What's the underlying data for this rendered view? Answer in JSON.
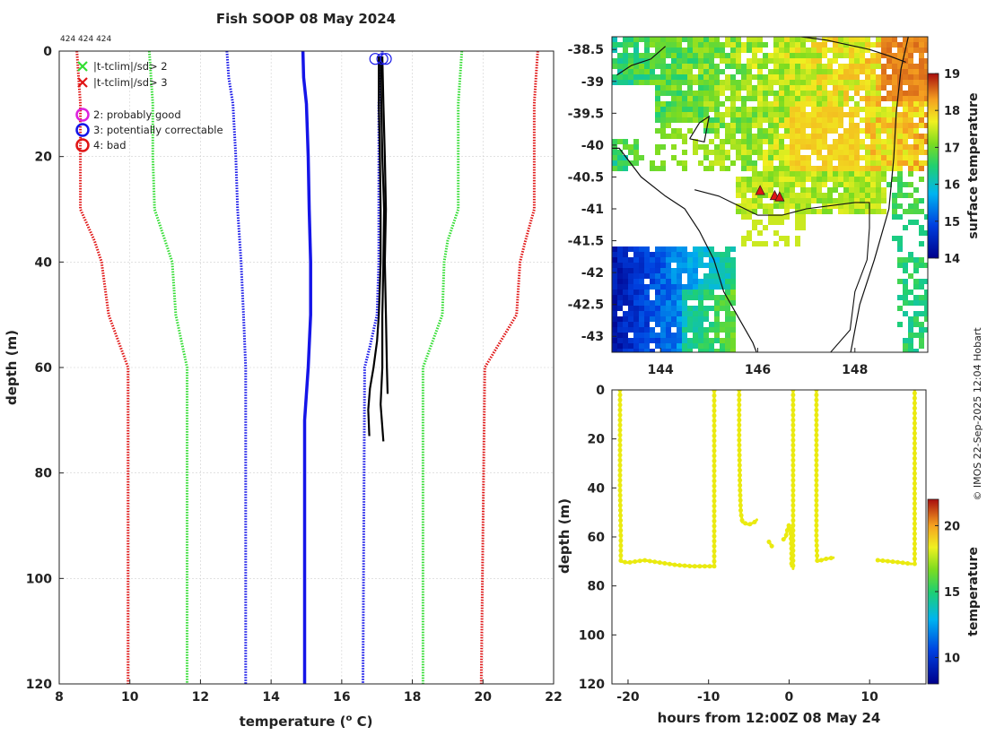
{
  "title": "Fish SOOP 08 May 2024",
  "profile_ids": "424 424 424",
  "credit": "© IMOS 22-Sep-2025 12:04 Hobart",
  "colors": {
    "clim_mean": "#1515e8",
    "sd1": "#1515e8",
    "sd2": "#33dd33",
    "sd3": "#e01515",
    "profile": "#000000",
    "qc_good": "#dd22dd",
    "qc_correctable": "#1515e8",
    "qc_bad": "#e01515",
    "track": "#eaea10",
    "coast": "#111111"
  },
  "legend": {
    "items": [
      {
        "symbol": "x",
        "color": "#33dd33",
        "label": "|t-tclim|/sd> 2"
      },
      {
        "symbol": "x",
        "color": "#e01515",
        "label": "|t-tclim|/sd> 3"
      },
      {
        "symbol": "o",
        "color": "#dd22dd",
        "label": "2: probably good"
      },
      {
        "symbol": "o",
        "color": "#1515e8",
        "label": "3: potentially correctable"
      },
      {
        "symbol": "o",
        "color": "#e01515",
        "label": "4: bad"
      }
    ]
  },
  "chart_data": [
    {
      "id": "profile",
      "type": "line",
      "title": "Fish SOOP 08 May 2024",
      "xlabel": "temperature (",
      "xlabel_sup": "o",
      "xlabel_suffix": " C)",
      "ylabel": "depth (m)",
      "xlim": [
        8,
        22
      ],
      "ylim": [
        0,
        120
      ],
      "y_inverted": true,
      "grid": true,
      "xticks": [
        8,
        10,
        12,
        14,
        16,
        18,
        20,
        22
      ],
      "yticks": [
        0,
        20,
        40,
        60,
        80,
        100,
        120
      ],
      "climatology": [
        {
          "name": "mean",
          "style": "solid",
          "color": "#1515e8",
          "points": [
            [
              14.9,
              0
            ],
            [
              14.92,
              5
            ],
            [
              15.0,
              10
            ],
            [
              15.05,
              20
            ],
            [
              15.08,
              30
            ],
            [
              15.12,
              40
            ],
            [
              15.12,
              50
            ],
            [
              15.05,
              60
            ],
            [
              14.95,
              70
            ],
            [
              14.95,
              80
            ],
            [
              14.95,
              100
            ],
            [
              14.95,
              120
            ]
          ]
        },
        {
          "name": "mean-1sd",
          "style": "dotted",
          "color": "#1515e8",
          "points": [
            [
              12.75,
              0
            ],
            [
              12.8,
              5
            ],
            [
              12.92,
              10
            ],
            [
              13.0,
              20
            ],
            [
              13.05,
              30
            ],
            [
              13.15,
              40
            ],
            [
              13.22,
              50
            ],
            [
              13.28,
              60
            ],
            [
              13.28,
              120
            ]
          ]
        },
        {
          "name": "mean+1sd",
          "style": "dotted",
          "color": "#1515e8",
          "points": [
            [
              17.15,
              0
            ],
            [
              17.1,
              5
            ],
            [
              17.05,
              10
            ],
            [
              17.05,
              20
            ],
            [
              17.05,
              30
            ],
            [
              17.05,
              40
            ],
            [
              17.0,
              50
            ],
            [
              16.8,
              56
            ],
            [
              16.65,
              60
            ],
            [
              16.6,
              120
            ]
          ]
        },
        {
          "name": "mean-2sd",
          "style": "dotted",
          "color": "#33dd33",
          "points": [
            [
              10.55,
              0
            ],
            [
              10.6,
              5
            ],
            [
              10.65,
              10
            ],
            [
              10.65,
              20
            ],
            [
              10.7,
              30
            ],
            [
              11.0,
              36
            ],
            [
              11.2,
              40
            ],
            [
              11.3,
              50
            ],
            [
              11.62,
              60
            ],
            [
              11.62,
              120
            ]
          ]
        },
        {
          "name": "mean+2sd",
          "style": "dotted",
          "color": "#33dd33",
          "points": [
            [
              19.4,
              0
            ],
            [
              19.35,
              5
            ],
            [
              19.3,
              10
            ],
            [
              19.3,
              20
            ],
            [
              19.3,
              30
            ],
            [
              19.0,
              36
            ],
            [
              18.9,
              40
            ],
            [
              18.85,
              50
            ],
            [
              18.3,
              60
            ],
            [
              18.3,
              120
            ]
          ]
        },
        {
          "name": "mean-3sd",
          "style": "dotted",
          "color": "#e01515",
          "points": [
            [
              8.5,
              0
            ],
            [
              8.55,
              5
            ],
            [
              8.6,
              10
            ],
            [
              8.6,
              20
            ],
            [
              8.6,
              30
            ],
            [
              9.0,
              36
            ],
            [
              9.2,
              40
            ],
            [
              9.4,
              50
            ],
            [
              9.95,
              60
            ],
            [
              9.95,
              120
            ]
          ]
        },
        {
          "name": "mean+3sd",
          "style": "dotted",
          "color": "#e01515",
          "points": [
            [
              21.55,
              0
            ],
            [
              21.5,
              5
            ],
            [
              21.45,
              10
            ],
            [
              21.45,
              20
            ],
            [
              21.45,
              30
            ],
            [
              21.2,
              36
            ],
            [
              21.05,
              40
            ],
            [
              20.95,
              50
            ],
            [
              20.05,
              60
            ],
            [
              19.95,
              120
            ]
          ]
        }
      ],
      "profiles": [
        {
          "name": "profile-1",
          "points": [
            [
              17.05,
              1
            ],
            [
              17.05,
              10
            ],
            [
              17.08,
              20
            ],
            [
              17.1,
              30
            ],
            [
              17.1,
              40
            ],
            [
              17.05,
              50
            ],
            [
              17.0,
              55
            ],
            [
              16.9,
              60
            ],
            [
              16.8,
              64
            ],
            [
              16.75,
              68
            ],
            [
              16.78,
              73
            ]
          ]
        },
        {
          "name": "profile-2",
          "points": [
            [
              17.15,
              1
            ],
            [
              17.18,
              10
            ],
            [
              17.22,
              20
            ],
            [
              17.25,
              30
            ],
            [
              17.22,
              40
            ],
            [
              17.25,
              50
            ],
            [
              17.28,
              60
            ],
            [
              17.3,
              65
            ]
          ]
        },
        {
          "name": "profile-3",
          "points": [
            [
              17.1,
              1
            ],
            [
              17.12,
              10
            ],
            [
              17.15,
              20
            ],
            [
              17.2,
              30
            ],
            [
              17.18,
              40
            ],
            [
              17.15,
              50
            ],
            [
              17.15,
              60
            ],
            [
              17.1,
              67
            ],
            [
              17.18,
              74
            ]
          ]
        }
      ],
      "qc_markers": [
        {
          "t": 16.95,
          "d": 0.8,
          "flag": 3
        },
        {
          "t": 17.15,
          "d": 0.8,
          "flag": 3
        },
        {
          "t": 17.25,
          "d": 0.8,
          "flag": 3
        }
      ]
    },
    {
      "id": "map",
      "type": "heatmap",
      "xlim": [
        143.0,
        149.5
      ],
      "ylim": [
        -43.25,
        -38.3
      ],
      "xticks": [
        144,
        146,
        148
      ],
      "yticks": [
        -38.5,
        -39,
        -39.5,
        -40,
        -40.5,
        -41,
        -41.5,
        -42,
        -42.5,
        -43
      ],
      "colorbar_label": "surface temperature",
      "colorbar_range": [
        14,
        19
      ],
      "colorbar_ticks": [
        14,
        15,
        16,
        17,
        18,
        19
      ],
      "markers": [
        {
          "lon": 146.05,
          "lat": -40.72
        },
        {
          "lon": 146.35,
          "lat": -40.8
        },
        {
          "lon": 146.45,
          "lat": -40.82
        }
      ]
    },
    {
      "id": "timeseries",
      "type": "scatter",
      "xlabel": "hours from 12:00Z 08 May 24",
      "ylabel": "depth (m)",
      "xlim": [
        -22,
        17
      ],
      "ylim": [
        0,
        120
      ],
      "y_inverted": true,
      "xticks": [
        -20,
        -10,
        0,
        10
      ],
      "yticks": [
        0,
        20,
        40,
        60,
        80,
        100,
        120
      ],
      "colorbar_label": "temperature",
      "colorbar_range": [
        8,
        22
      ],
      "colorbar_ticks": [
        10,
        15,
        20
      ],
      "segments": [
        {
          "name": "tow-1",
          "points": [
            [
              -21.0,
              0
            ],
            [
              -21.0,
              20
            ],
            [
              -21.0,
              40
            ],
            [
              -20.9,
              60
            ],
            [
              -20.9,
              70
            ],
            [
              -20,
              70.5
            ],
            [
              -18,
              69.5
            ],
            [
              -16,
              70.5
            ],
            [
              -14,
              71.5
            ],
            [
              -12,
              72
            ],
            [
              -10,
              72
            ],
            [
              -9.4,
              72
            ]
          ]
        },
        {
          "name": "tow-2",
          "points": [
            [
              -9.3,
              72
            ],
            [
              -9.3,
              50
            ],
            [
              -9.3,
              20
            ],
            [
              -9.3,
              0
            ]
          ]
        },
        {
          "name": "tow-3",
          "points": [
            [
              -6.2,
              0
            ],
            [
              -6.2,
              20
            ],
            [
              -6.1,
              40
            ],
            [
              -6.0,
              50
            ],
            [
              -5.8,
              54
            ],
            [
              -5,
              55
            ],
            [
              -4.3,
              54
            ],
            [
              -4,
              53
            ]
          ]
        },
        {
          "name": "tow-4",
          "points": [
            [
              -2.5,
              62
            ],
            [
              -2.1,
              64
            ]
          ]
        },
        {
          "name": "tow-5",
          "points": [
            [
              -0.7,
              61
            ],
            [
              -0.4,
              60
            ],
            [
              -0.2,
              57
            ],
            [
              0,
              55
            ],
            [
              0.2,
              58
            ],
            [
              0.3,
              65
            ],
            [
              0.3,
              72
            ]
          ]
        },
        {
          "name": "tow-6",
          "points": [
            [
              0.5,
              0
            ],
            [
              0.5,
              20
            ],
            [
              0.5,
              40
            ],
            [
              0.5,
              60
            ],
            [
              0.5,
              73
            ]
          ]
        },
        {
          "name": "tow-7",
          "points": [
            [
              3.4,
              0
            ],
            [
              3.4,
              20
            ],
            [
              3.4,
              40
            ],
            [
              3.4,
              60
            ],
            [
              3.5,
              70
            ],
            [
              4.5,
              69
            ],
            [
              5.5,
              68.5
            ]
          ]
        },
        {
          "name": "tow-8",
          "points": [
            [
              11,
              69.5
            ],
            [
              12.5,
              70
            ],
            [
              14,
              70.5
            ],
            [
              15.2,
              71
            ]
          ]
        },
        {
          "name": "tow-9",
          "points": [
            [
              15.6,
              71
            ],
            [
              15.6,
              50
            ],
            [
              15.6,
              25
            ],
            [
              15.6,
              0
            ]
          ]
        }
      ]
    }
  ]
}
